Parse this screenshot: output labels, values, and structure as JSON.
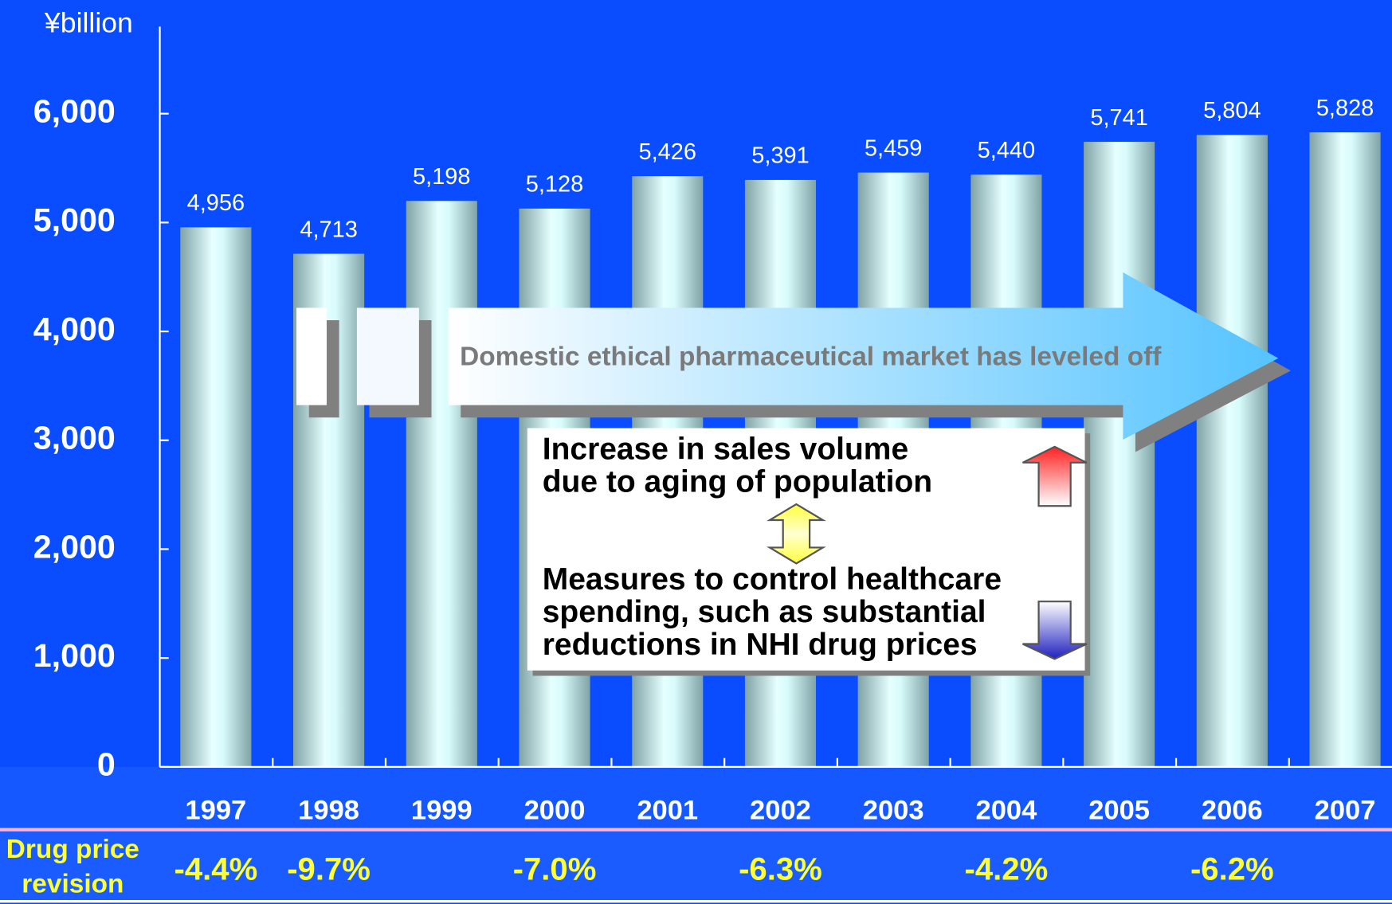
{
  "chart_data": {
    "type": "bar",
    "y_axis_label": "¥billion",
    "categories": [
      "1997",
      "1998",
      "1999",
      "2000",
      "2001",
      "2002",
      "2003",
      "2004",
      "2005",
      "2006",
      "2007"
    ],
    "values": [
      4956,
      4713,
      5198,
      5128,
      5426,
      5391,
      5459,
      5440,
      5741,
      5804,
      5828
    ],
    "value_labels": [
      "4,956",
      "4,713",
      "5,198",
      "5,128",
      "5,426",
      "5,391",
      "5,459",
      "5,440",
      "5,741",
      "5,804",
      "5,828"
    ],
    "color": "#bfeeee",
    "ylim": [
      0,
      6800
    ],
    "yticks": [
      0,
      {
        "value": 1000,
        "label": "1,000"
      },
      {
        "value": 2000,
        "label": "2,000"
      },
      {
        "value": 3000,
        "label": "3,000"
      },
      {
        "value": 4000,
        "label": "4,000"
      },
      {
        "value": 5000,
        "label": "5,000"
      },
      {
        "value": 6000,
        "label": "6,000"
      }
    ],
    "grid": false,
    "annotations": {
      "arrow": "Domestic ethical pharmaceutical market has leveled off",
      "box_upper": [
        "Increase in sales volume",
        "due to aging of population"
      ],
      "box_lower": [
        "Measures to control  healthcare",
        "spending, such as substantial",
        "reductions in NHI drug prices"
      ]
    },
    "drug_price_revision": {
      "label": [
        "Drug price",
        "revision"
      ],
      "values": [
        -4.4,
        -9.7,
        null,
        -7.0,
        null,
        -6.3,
        null,
        -4.2,
        null,
        -6.2,
        null
      ],
      "value_labels": [
        "-4.4%",
        "-9.7%",
        null,
        "-7.0%",
        null,
        "-6.3%",
        null,
        "-4.2%",
        null,
        "-6.2%",
        null
      ]
    }
  }
}
